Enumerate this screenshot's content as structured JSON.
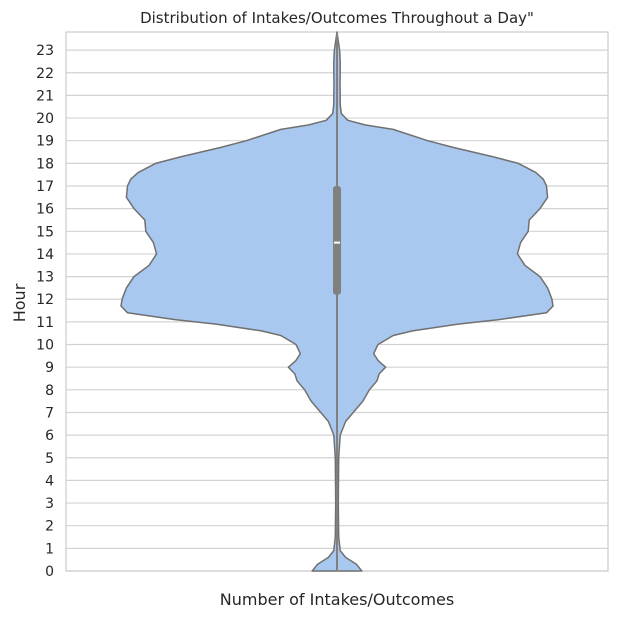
{
  "chart_data": {
    "type": "violin",
    "title": "Distribution of Intakes/Outcomes Throughout a Day\"",
    "xlabel": "Number of Intakes/Outcomes",
    "ylabel": "Hour",
    "ylim": [
      0,
      23.8
    ],
    "yticks": [
      0,
      1,
      2,
      3,
      4,
      5,
      6,
      7,
      8,
      9,
      10,
      11,
      12,
      13,
      14,
      15,
      16,
      17,
      18,
      19,
      20,
      21,
      22,
      23
    ],
    "grid": "horizontal",
    "colors": {
      "fill": "#a9c8ef",
      "outline": "#707070",
      "box": "#808080",
      "median": "#ffffff"
    },
    "box": {
      "q1": 12.2,
      "median": 14.5,
      "q3": 17.0,
      "whisker_low": 0,
      "whisker_high": 23.8
    },
    "density_profile": {
      "hour": [
        0,
        0.3,
        0.6,
        0.9,
        1.5,
        3,
        5,
        6,
        6.6,
        7,
        7.5,
        8,
        8.4,
        8.7,
        9.0,
        9.3,
        9.6,
        10.0,
        10.4,
        10.6,
        10.9,
        11.1,
        11.4,
        11.7,
        12.0,
        12.5,
        13.0,
        13.5,
        14.0,
        14.5,
        15.0,
        15.5,
        16.0,
        16.5,
        17.0,
        17.3,
        17.6,
        18.0,
        18.3,
        18.7,
        19.0,
        19.5,
        19.7,
        19.9,
        20.2,
        20.6,
        21.0,
        21.5,
        22.0,
        22.5,
        23.0,
        23.8
      ],
      "density": [
        0.115,
        0.09,
        0.04,
        0.015,
        0.008,
        0.006,
        0.008,
        0.015,
        0.04,
        0.075,
        0.12,
        0.15,
        0.185,
        0.195,
        0.225,
        0.19,
        0.17,
        0.19,
        0.26,
        0.35,
        0.56,
        0.75,
        0.97,
        1.0,
        0.995,
        0.975,
        0.94,
        0.87,
        0.835,
        0.85,
        0.885,
        0.89,
        0.94,
        0.975,
        0.97,
        0.955,
        0.92,
        0.84,
        0.72,
        0.54,
        0.42,
        0.26,
        0.13,
        0.05,
        0.02,
        0.015,
        0.015,
        0.014,
        0.015,
        0.015,
        0.012,
        0.0
      ]
    }
  }
}
